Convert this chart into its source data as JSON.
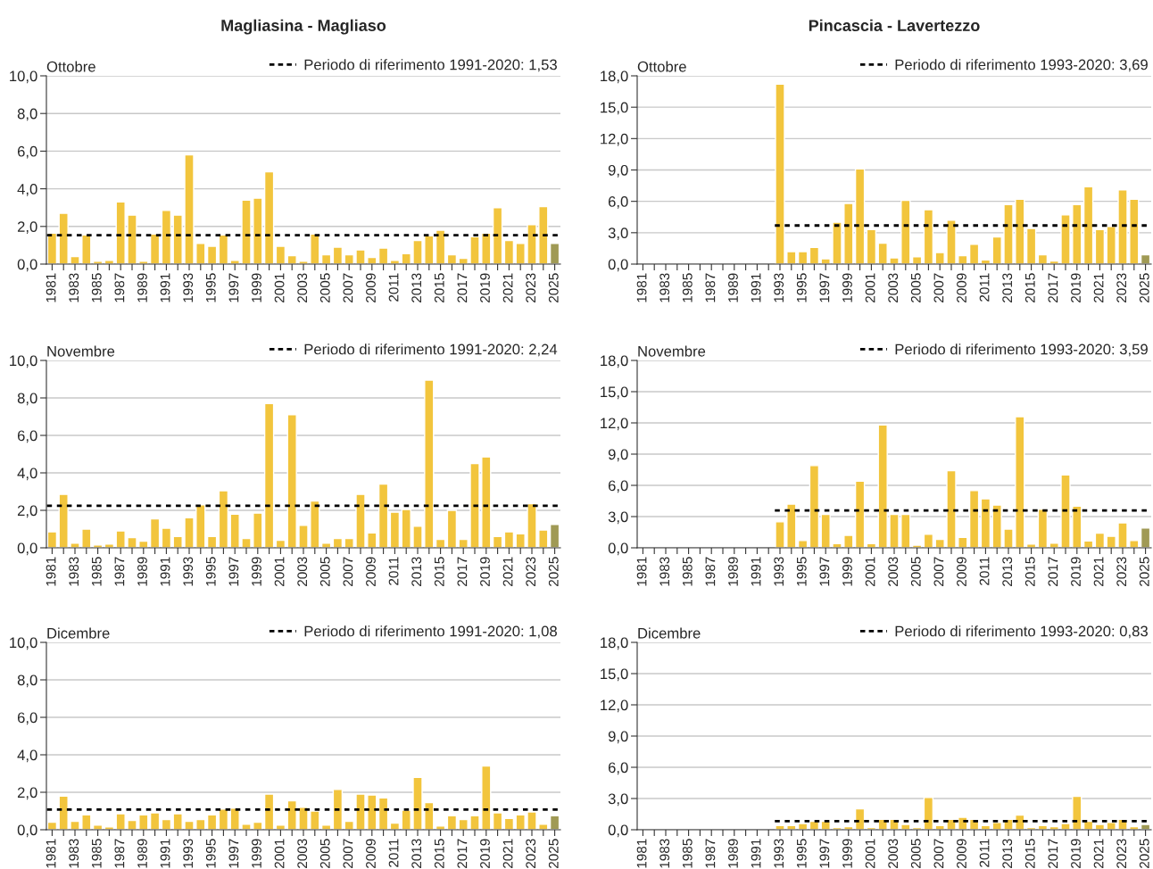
{
  "chart_data": [
    {
      "type": "bar",
      "title": "Magliasina - Magliaso",
      "subtitle": "Ottobre",
      "categories": [
        "1981",
        null,
        "1983",
        null,
        "1985",
        null,
        "1987",
        null,
        "1989",
        null,
        "1991",
        null,
        "1993",
        null,
        "1995",
        null,
        "1997",
        null,
        "1999",
        null,
        "2001",
        null,
        "2003",
        null,
        "2005",
        null,
        "2007",
        null,
        "2009",
        null,
        "2011",
        null,
        "2013",
        null,
        "2015",
        null,
        "2017",
        null,
        "2019",
        null,
        "2021",
        null,
        "2023",
        null,
        "2025"
      ],
      "values": [
        1.65,
        2.7,
        0.4,
        1.55,
        0.15,
        0.2,
        3.3,
        2.6,
        0.15,
        1.6,
        2.85,
        2.6,
        5.8,
        1.1,
        0.95,
        1.55,
        0.2,
        3.4,
        3.5,
        4.9,
        0.95,
        0.45,
        0.15,
        1.6,
        0.5,
        0.9,
        0.5,
        0.75,
        0.35,
        0.85,
        0.2,
        0.55,
        1.25,
        1.5,
        1.8,
        0.5,
        0.3,
        1.45,
        1.65,
        3.0,
        1.25,
        1.1,
        2.1,
        3.05,
        1.1
      ],
      "colors": [
        "#f2c53d",
        "#f2c53d",
        "#f2c53d",
        "#f2c53d",
        "#f2c53d",
        "#f2c53d",
        "#f2c53d",
        "#f2c53d",
        "#f2c53d",
        "#f2c53d",
        "#f2c53d",
        "#f2c53d",
        "#f2c53d",
        "#f2c53d",
        "#f2c53d",
        "#f2c53d",
        "#f2c53d",
        "#f2c53d",
        "#f2c53d",
        "#f2c53d",
        "#f2c53d",
        "#f2c53d",
        "#f2c53d",
        "#f2c53d",
        "#f2c53d",
        "#f2c53d",
        "#f2c53d",
        "#f2c53d",
        "#f2c53d",
        "#f2c53d",
        "#f2c53d",
        "#f2c53d",
        "#f2c53d",
        "#f2c53d",
        "#f2c53d",
        "#f2c53d",
        "#f2c53d",
        "#f2c53d",
        "#f2c53d",
        "#f2c53d",
        "#f2c53d",
        "#f2c53d",
        "#f2c53d",
        "#f2c53d",
        "#a09a55"
      ],
      "ylim": [
        0,
        10
      ],
      "yticks": [
        {
          "value": 0,
          "label": "0,0"
        },
        {
          "value": 2,
          "label": "2,0"
        },
        {
          "value": 4,
          "label": "4,0"
        },
        {
          "value": 6,
          "label": "6,0"
        },
        {
          "value": 8,
          "label": "8,0"
        },
        {
          "value": 10,
          "label": "10,0"
        }
      ],
      "ref_lines": [
        {
          "axis": "y",
          "value": 1.53,
          "label": "Periodo di riferimento 1991-2020: 1,53",
          "color": "#000000",
          "line_style": "dotted"
        }
      ],
      "grid": "y",
      "legend": "top right"
    },
    {
      "type": "bar",
      "title": "Pincascia - Lavertezzo",
      "subtitle": "Ottobre",
      "categories": [
        "1981",
        null,
        "1983",
        null,
        "1985",
        null,
        "1987",
        null,
        "1989",
        null,
        "1991",
        null,
        "1993",
        null,
        "1995",
        null,
        "1997",
        null,
        "1999",
        null,
        "2001",
        null,
        "2003",
        null,
        "2005",
        null,
        "2007",
        null,
        "2009",
        null,
        "2011",
        null,
        "2013",
        null,
        "2015",
        null,
        "2017",
        null,
        "2019",
        null,
        "2021",
        null,
        "2023",
        null,
        "2025"
      ],
      "values": [
        null,
        null,
        null,
        null,
        null,
        null,
        null,
        null,
        null,
        null,
        null,
        null,
        17.2,
        1.2,
        1.2,
        1.6,
        0.5,
        4.0,
        5.8,
        9.1,
        3.3,
        2.0,
        0.6,
        6.1,
        0.7,
        5.2,
        1.1,
        4.2,
        0.8,
        1.9,
        0.4,
        2.6,
        5.7,
        6.2,
        3.4,
        0.9,
        0.3,
        4.7,
        5.7,
        7.4,
        3.3,
        3.6,
        7.1,
        6.2,
        0.9
      ],
      "colors": [
        "#f2c53d",
        "#f2c53d",
        "#f2c53d",
        "#f2c53d",
        "#f2c53d",
        "#f2c53d",
        "#f2c53d",
        "#f2c53d",
        "#f2c53d",
        "#f2c53d",
        "#f2c53d",
        "#f2c53d",
        "#f2c53d",
        "#f2c53d",
        "#f2c53d",
        "#f2c53d",
        "#f2c53d",
        "#f2c53d",
        "#f2c53d",
        "#f2c53d",
        "#f2c53d",
        "#f2c53d",
        "#f2c53d",
        "#f2c53d",
        "#f2c53d",
        "#f2c53d",
        "#f2c53d",
        "#f2c53d",
        "#f2c53d",
        "#f2c53d",
        "#f2c53d",
        "#f2c53d",
        "#f2c53d",
        "#f2c53d",
        "#f2c53d",
        "#f2c53d",
        "#f2c53d",
        "#f2c53d",
        "#f2c53d",
        "#f2c53d",
        "#f2c53d",
        "#f2c53d",
        "#f2c53d",
        "#f2c53d",
        "#a09a55"
      ],
      "ylim": [
        0,
        18
      ],
      "yticks": [
        {
          "value": 0,
          "label": "0,0"
        },
        {
          "value": 3,
          "label": "3,0"
        },
        {
          "value": 6,
          "label": "6,0"
        },
        {
          "value": 9,
          "label": "9,0"
        },
        {
          "value": 12,
          "label": "12,0"
        },
        {
          "value": 15,
          "label": "15,0"
        },
        {
          "value": 18,
          "label": "18,0"
        }
      ],
      "ref_lines": [
        {
          "axis": "y",
          "value": 3.69,
          "label": "Periodo di riferimento 1993-2020: 3,69",
          "color": "#000000",
          "line_style": "dotted"
        }
      ],
      "grid": "y",
      "legend": "top right"
    },
    {
      "type": "bar",
      "subtitle": "Novembre",
      "categories": [
        "1981",
        null,
        "1983",
        null,
        "1985",
        null,
        "1987",
        null,
        "1989",
        null,
        "1991",
        null,
        "1993",
        null,
        "1995",
        null,
        "1997",
        null,
        "1999",
        null,
        "2001",
        null,
        "2003",
        null,
        "2005",
        null,
        "2007",
        null,
        "2009",
        null,
        "2011",
        null,
        "2013",
        null,
        "2015",
        null,
        "2017",
        null,
        "2019",
        null,
        "2021",
        null,
        "2023",
        null,
        "2025"
      ],
      "values": [
        0.85,
        2.85,
        0.25,
        1.0,
        0.15,
        0.2,
        0.9,
        0.55,
        0.35,
        1.55,
        1.05,
        0.6,
        1.6,
        2.3,
        0.6,
        3.05,
        1.8,
        0.5,
        1.85,
        7.7,
        0.4,
        7.1,
        1.2,
        2.5,
        0.25,
        0.5,
        0.5,
        2.85,
        0.8,
        3.4,
        1.9,
        2.05,
        1.15,
        8.95,
        0.45,
        2.0,
        0.45,
        4.5,
        4.85,
        0.6,
        0.85,
        0.75,
        2.35,
        0.95,
        1.25
      ],
      "colors": [
        "#f2c53d",
        "#f2c53d",
        "#f2c53d",
        "#f2c53d",
        "#f2c53d",
        "#f2c53d",
        "#f2c53d",
        "#f2c53d",
        "#f2c53d",
        "#f2c53d",
        "#f2c53d",
        "#f2c53d",
        "#f2c53d",
        "#f2c53d",
        "#f2c53d",
        "#f2c53d",
        "#f2c53d",
        "#f2c53d",
        "#f2c53d",
        "#f2c53d",
        "#f2c53d",
        "#f2c53d",
        "#f2c53d",
        "#f2c53d",
        "#f2c53d",
        "#f2c53d",
        "#f2c53d",
        "#f2c53d",
        "#f2c53d",
        "#f2c53d",
        "#f2c53d",
        "#f2c53d",
        "#f2c53d",
        "#f2c53d",
        "#f2c53d",
        "#f2c53d",
        "#f2c53d",
        "#f2c53d",
        "#f2c53d",
        "#f2c53d",
        "#f2c53d",
        "#f2c53d",
        "#f2c53d",
        "#f2c53d",
        "#a09a55"
      ],
      "ylim": [
        0,
        10
      ],
      "yticks": [
        {
          "value": 0,
          "label": "0,0"
        },
        {
          "value": 2,
          "label": "2,0"
        },
        {
          "value": 4,
          "label": "4,0"
        },
        {
          "value": 6,
          "label": "6,0"
        },
        {
          "value": 8,
          "label": "8,0"
        },
        {
          "value": 10,
          "label": "10,0"
        }
      ],
      "ref_lines": [
        {
          "axis": "y",
          "value": 2.24,
          "label": "Periodo di riferimento 1991-2020: 2,24",
          "color": "#000000",
          "line_style": "dotted"
        }
      ],
      "grid": "y",
      "legend": "top right"
    },
    {
      "type": "bar",
      "subtitle": "Novembre",
      "categories": [
        "1981",
        null,
        "1983",
        null,
        "1985",
        null,
        "1987",
        null,
        "1989",
        null,
        "1991",
        null,
        "1993",
        null,
        "1995",
        null,
        "1997",
        null,
        "1999",
        null,
        "2001",
        null,
        "2003",
        null,
        "2005",
        null,
        "2007",
        null,
        "2009",
        null,
        "2011",
        null,
        "2013",
        null,
        "2015",
        null,
        "2017",
        null,
        "2019",
        null,
        "2021",
        null,
        "2023",
        null,
        "2025"
      ],
      "values": [
        null,
        null,
        null,
        null,
        null,
        null,
        null,
        null,
        null,
        null,
        null,
        null,
        2.5,
        4.2,
        0.7,
        7.9,
        3.2,
        0.4,
        1.2,
        6.4,
        0.4,
        11.8,
        3.2,
        3.2,
        0.25,
        1.3,
        0.8,
        7.4,
        1.0,
        5.5,
        4.7,
        4.1,
        1.8,
        12.6,
        0.35,
        3.7,
        0.45,
        7.0,
        4.0,
        0.65,
        1.4,
        1.1,
        2.4,
        0.7,
        1.9
      ],
      "colors": [
        "#f2c53d",
        "#f2c53d",
        "#f2c53d",
        "#f2c53d",
        "#f2c53d",
        "#f2c53d",
        "#f2c53d",
        "#f2c53d",
        "#f2c53d",
        "#f2c53d",
        "#f2c53d",
        "#f2c53d",
        "#f2c53d",
        "#f2c53d",
        "#f2c53d",
        "#f2c53d",
        "#f2c53d",
        "#f2c53d",
        "#f2c53d",
        "#f2c53d",
        "#f2c53d",
        "#f2c53d",
        "#f2c53d",
        "#f2c53d",
        "#f2c53d",
        "#f2c53d",
        "#f2c53d",
        "#f2c53d",
        "#f2c53d",
        "#f2c53d",
        "#f2c53d",
        "#f2c53d",
        "#f2c53d",
        "#f2c53d",
        "#f2c53d",
        "#f2c53d",
        "#f2c53d",
        "#f2c53d",
        "#f2c53d",
        "#f2c53d",
        "#f2c53d",
        "#f2c53d",
        "#f2c53d",
        "#f2c53d",
        "#a09a55"
      ],
      "ylim": [
        0,
        18
      ],
      "yticks": [
        {
          "value": 0,
          "label": "0,0"
        },
        {
          "value": 3,
          "label": "3,0"
        },
        {
          "value": 6,
          "label": "6,0"
        },
        {
          "value": 9,
          "label": "9,0"
        },
        {
          "value": 12,
          "label": "12,0"
        },
        {
          "value": 15,
          "label": "15,0"
        },
        {
          "value": 18,
          "label": "18,0"
        }
      ],
      "ref_lines": [
        {
          "axis": "y",
          "value": 3.59,
          "label": "Periodo di riferimento 1993-2020: 3,59",
          "color": "#000000",
          "line_style": "dotted"
        }
      ],
      "grid": "y",
      "legend": "top right"
    },
    {
      "type": "bar",
      "subtitle": "Dicembre",
      "categories": [
        "1981",
        null,
        "1983",
        null,
        "1985",
        null,
        "1987",
        null,
        "1989",
        null,
        "1991",
        null,
        "1993",
        null,
        "1995",
        null,
        "1997",
        null,
        "1999",
        null,
        "2001",
        null,
        "2003",
        null,
        "2005",
        null,
        "2007",
        null,
        "2009",
        null,
        "2011",
        null,
        "2013",
        null,
        "2015",
        null,
        "2017",
        null,
        "2019",
        null,
        "2021",
        null,
        "2023",
        null,
        "2025"
      ],
      "values": [
        0.4,
        1.8,
        0.45,
        0.8,
        0.25,
        0.15,
        0.85,
        0.5,
        0.8,
        0.9,
        0.55,
        0.85,
        0.45,
        0.55,
        0.8,
        1.1,
        1.15,
        0.3,
        0.4,
        1.9,
        0.25,
        1.55,
        1.2,
        1.0,
        0.25,
        2.15,
        0.45,
        1.9,
        1.85,
        1.7,
        0.35,
        1.05,
        2.8,
        1.45,
        0.2,
        0.75,
        0.55,
        0.75,
        3.4,
        0.9,
        0.6,
        0.8,
        0.95,
        0.3,
        0.75
      ],
      "colors": [
        "#f2c53d",
        "#f2c53d",
        "#f2c53d",
        "#f2c53d",
        "#f2c53d",
        "#f2c53d",
        "#f2c53d",
        "#f2c53d",
        "#f2c53d",
        "#f2c53d",
        "#f2c53d",
        "#f2c53d",
        "#f2c53d",
        "#f2c53d",
        "#f2c53d",
        "#f2c53d",
        "#f2c53d",
        "#f2c53d",
        "#f2c53d",
        "#f2c53d",
        "#f2c53d",
        "#f2c53d",
        "#f2c53d",
        "#f2c53d",
        "#f2c53d",
        "#f2c53d",
        "#f2c53d",
        "#f2c53d",
        "#f2c53d",
        "#f2c53d",
        "#f2c53d",
        "#f2c53d",
        "#f2c53d",
        "#f2c53d",
        "#f2c53d",
        "#f2c53d",
        "#f2c53d",
        "#f2c53d",
        "#f2c53d",
        "#f2c53d",
        "#f2c53d",
        "#f2c53d",
        "#f2c53d",
        "#f2c53d",
        "#a09a55"
      ],
      "ylim": [
        0,
        10
      ],
      "yticks": [
        {
          "value": 0,
          "label": "0,0"
        },
        {
          "value": 2,
          "label": "2,0"
        },
        {
          "value": 4,
          "label": "4,0"
        },
        {
          "value": 6,
          "label": "6,0"
        },
        {
          "value": 8,
          "label": "8,0"
        },
        {
          "value": 10,
          "label": "10,0"
        }
      ],
      "ref_lines": [
        {
          "axis": "y",
          "value": 1.08,
          "label": "Periodo di riferimento 1991-2020: 1,08",
          "color": "#000000",
          "line_style": "dotted"
        }
      ],
      "grid": "y",
      "legend": "top right"
    },
    {
      "type": "bar",
      "subtitle": "Dicembre",
      "categories": [
        "1981",
        null,
        "1983",
        null,
        "1985",
        null,
        "1987",
        null,
        "1989",
        null,
        "1991",
        null,
        "1993",
        null,
        "1995",
        null,
        "1997",
        null,
        "1999",
        null,
        "2001",
        null,
        "2003",
        null,
        "2005",
        null,
        "2007",
        null,
        "2009",
        null,
        "2011",
        null,
        "2013",
        null,
        "2015",
        null,
        "2017",
        null,
        "2019",
        null,
        "2021",
        null,
        "2023",
        null,
        "2025"
      ],
      "values": [
        null,
        null,
        null,
        null,
        null,
        null,
        null,
        null,
        null,
        null,
        null,
        null,
        0.4,
        0.4,
        0.6,
        0.8,
        0.8,
        0.2,
        0.3,
        2.0,
        0.2,
        1.0,
        1.0,
        0.5,
        0.2,
        3.1,
        0.4,
        1.0,
        1.2,
        1.0,
        0.4,
        0.7,
        1.0,
        1.4,
        0.2,
        0.4,
        0.3,
        0.6,
        3.2,
        0.8,
        0.5,
        0.7,
        1.0,
        0.3,
        0.5
      ],
      "colors": [
        "#f2c53d",
        "#f2c53d",
        "#f2c53d",
        "#f2c53d",
        "#f2c53d",
        "#f2c53d",
        "#f2c53d",
        "#f2c53d",
        "#f2c53d",
        "#f2c53d",
        "#f2c53d",
        "#f2c53d",
        "#f2c53d",
        "#f2c53d",
        "#f2c53d",
        "#f2c53d",
        "#f2c53d",
        "#f2c53d",
        "#f2c53d",
        "#f2c53d",
        "#f2c53d",
        "#f2c53d",
        "#f2c53d",
        "#f2c53d",
        "#f2c53d",
        "#f2c53d",
        "#f2c53d",
        "#f2c53d",
        "#f2c53d",
        "#f2c53d",
        "#f2c53d",
        "#f2c53d",
        "#f2c53d",
        "#f2c53d",
        "#f2c53d",
        "#f2c53d",
        "#f2c53d",
        "#f2c53d",
        "#f2c53d",
        "#f2c53d",
        "#f2c53d",
        "#f2c53d",
        "#f2c53d",
        "#f2c53d",
        "#a09a55"
      ],
      "ylim": [
        0,
        18
      ],
      "yticks": [
        {
          "value": 0,
          "label": "0,0"
        },
        {
          "value": 3,
          "label": "3,0"
        },
        {
          "value": 6,
          "label": "6,0"
        },
        {
          "value": 9,
          "label": "9,0"
        },
        {
          "value": 12,
          "label": "12,0"
        },
        {
          "value": 15,
          "label": "15,0"
        },
        {
          "value": 18,
          "label": "18,0"
        }
      ],
      "ref_lines": [
        {
          "axis": "y",
          "value": 0.83,
          "label": "Periodo di riferimento 1993-2020: 0,83",
          "color": "#000000",
          "line_style": "dotted"
        }
      ],
      "grid": "y",
      "legend": "top right"
    }
  ]
}
